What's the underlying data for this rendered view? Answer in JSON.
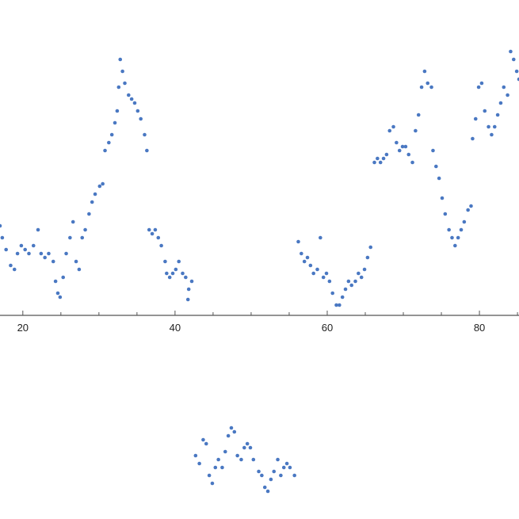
{
  "chart_data": {
    "type": "scatter",
    "title": "",
    "xlabel": "",
    "ylabel": "",
    "xlim": [
      17.0,
      85.2
    ],
    "ylim": [
      -2.57,
      3.98
    ],
    "grid": false,
    "x_major_ticks": [
      20,
      40,
      60,
      80
    ],
    "x_tick_labels": [
      "20",
      "40",
      "60",
      "80"
    ],
    "x_minor_step": 5,
    "marker_color": "#4a78c2",
    "points": [
      [
        17.0,
        1.13
      ],
      [
        17.3,
        0.98
      ],
      [
        17.8,
        0.83
      ],
      [
        18.4,
        0.63
      ],
      [
        18.9,
        0.58
      ],
      [
        19.3,
        0.78
      ],
      [
        19.8,
        0.88
      ],
      [
        20.3,
        0.83
      ],
      [
        20.8,
        0.78
      ],
      [
        21.4,
        0.88
      ],
      [
        22.0,
        1.08
      ],
      [
        22.4,
        0.78
      ],
      [
        22.9,
        0.73
      ],
      [
        23.4,
        0.78
      ],
      [
        24.0,
        0.68
      ],
      [
        24.3,
        0.43
      ],
      [
        24.6,
        0.28
      ],
      [
        24.9,
        0.23
      ],
      [
        25.3,
        0.48
      ],
      [
        25.7,
        0.78
      ],
      [
        26.2,
        0.98
      ],
      [
        26.6,
        1.18
      ],
      [
        27.0,
        0.68
      ],
      [
        27.4,
        0.58
      ],
      [
        27.8,
        0.98
      ],
      [
        28.2,
        1.08
      ],
      [
        28.7,
        1.28
      ],
      [
        29.1,
        1.43
      ],
      [
        29.5,
        1.53
      ],
      [
        30.1,
        1.63
      ],
      [
        30.5,
        1.66
      ],
      [
        30.8,
        2.08
      ],
      [
        31.3,
        2.18
      ],
      [
        31.7,
        2.28
      ],
      [
        32.1,
        2.43
      ],
      [
        32.4,
        2.58
      ],
      [
        32.6,
        2.88
      ],
      [
        32.8,
        3.23
      ],
      [
        33.1,
        3.08
      ],
      [
        33.4,
        2.93
      ],
      [
        33.9,
        2.78
      ],
      [
        34.3,
        2.73
      ],
      [
        34.7,
        2.68
      ],
      [
        35.1,
        2.58
      ],
      [
        35.5,
        2.48
      ],
      [
        36.0,
        2.28
      ],
      [
        36.3,
        2.08
      ],
      [
        36.6,
        1.08
      ],
      [
        37.0,
        1.03
      ],
      [
        37.4,
        1.08
      ],
      [
        37.8,
        0.98
      ],
      [
        38.2,
        0.88
      ],
      [
        38.7,
        0.68
      ],
      [
        38.9,
        0.53
      ],
      [
        39.3,
        0.48
      ],
      [
        39.7,
        0.53
      ],
      [
        40.1,
        0.58
      ],
      [
        40.5,
        0.68
      ],
      [
        41.0,
        0.53
      ],
      [
        41.4,
        0.48
      ],
      [
        41.8,
        0.33
      ],
      [
        42.2,
        0.43
      ],
      [
        41.7,
        0.2
      ],
      [
        42.7,
        -1.77
      ],
      [
        43.2,
        -1.87
      ],
      [
        43.7,
        -1.57
      ],
      [
        44.1,
        -1.62
      ],
      [
        44.5,
        -2.02
      ],
      [
        44.9,
        -2.12
      ],
      [
        45.3,
        -1.92
      ],
      [
        45.7,
        -1.82
      ],
      [
        46.2,
        -1.92
      ],
      [
        46.6,
        -1.72
      ],
      [
        47.0,
        -1.52
      ],
      [
        47.4,
        -1.42
      ],
      [
        47.8,
        -1.47
      ],
      [
        48.2,
        -1.77
      ],
      [
        48.7,
        -1.82
      ],
      [
        49.1,
        -1.67
      ],
      [
        49.5,
        -1.62
      ],
      [
        49.9,
        -1.67
      ],
      [
        50.3,
        -1.82
      ],
      [
        51.0,
        -1.97
      ],
      [
        51.4,
        -2.02
      ],
      [
        51.8,
        -2.17
      ],
      [
        52.2,
        -2.22
      ],
      [
        52.6,
        -2.07
      ],
      [
        53.0,
        -1.97
      ],
      [
        53.5,
        -1.82
      ],
      [
        53.9,
        -2.02
      ],
      [
        54.3,
        -1.92
      ],
      [
        54.7,
        -1.87
      ],
      [
        55.1,
        -1.92
      ],
      [
        55.7,
        -2.02
      ],
      [
        56.2,
        0.93
      ],
      [
        56.6,
        0.78
      ],
      [
        57.0,
        0.68
      ],
      [
        57.4,
        0.73
      ],
      [
        57.8,
        0.63
      ],
      [
        58.2,
        0.53
      ],
      [
        58.7,
        0.58
      ],
      [
        59.1,
        0.98
      ],
      [
        59.5,
        0.48
      ],
      [
        59.9,
        0.53
      ],
      [
        60.3,
        0.43
      ],
      [
        60.7,
        0.28
      ],
      [
        61.2,
        0.13
      ],
      [
        61.6,
        0.13
      ],
      [
        62.0,
        0.23
      ],
      [
        62.4,
        0.33
      ],
      [
        62.8,
        0.43
      ],
      [
        63.2,
        0.38
      ],
      [
        63.7,
        0.43
      ],
      [
        64.1,
        0.53
      ],
      [
        64.5,
        0.48
      ],
      [
        64.9,
        0.58
      ],
      [
        65.3,
        0.73
      ],
      [
        65.7,
        0.86
      ],
      [
        66.2,
        1.93
      ],
      [
        66.6,
        1.98
      ],
      [
        67.0,
        1.93
      ],
      [
        67.4,
        1.98
      ],
      [
        67.8,
        2.03
      ],
      [
        68.2,
        2.33
      ],
      [
        68.7,
        2.38
      ],
      [
        69.1,
        2.18
      ],
      [
        69.5,
        2.08
      ],
      [
        69.9,
        2.13
      ],
      [
        70.3,
        2.13
      ],
      [
        70.7,
        2.03
      ],
      [
        71.2,
        1.93
      ],
      [
        71.6,
        2.33
      ],
      [
        72.0,
        2.53
      ],
      [
        72.4,
        2.88
      ],
      [
        72.8,
        3.08
      ],
      [
        73.2,
        2.93
      ],
      [
        73.7,
        2.88
      ],
      [
        73.9,
        2.08
      ],
      [
        74.3,
        1.88
      ],
      [
        74.7,
        1.73
      ],
      [
        75.1,
        1.48
      ],
      [
        75.5,
        1.28
      ],
      [
        76.0,
        1.08
      ],
      [
        76.4,
        0.98
      ],
      [
        76.8,
        0.88
      ],
      [
        77.2,
        0.98
      ],
      [
        77.6,
        1.08
      ],
      [
        78.0,
        1.18
      ],
      [
        78.5,
        1.33
      ],
      [
        78.9,
        1.38
      ],
      [
        79.1,
        2.23
      ],
      [
        79.5,
        2.48
      ],
      [
        79.9,
        2.88
      ],
      [
        80.3,
        2.93
      ],
      [
        80.7,
        2.58
      ],
      [
        81.2,
        2.38
      ],
      [
        81.6,
        2.28
      ],
      [
        82.0,
        2.38
      ],
      [
        82.4,
        2.53
      ],
      [
        82.8,
        2.68
      ],
      [
        83.2,
        2.88
      ],
      [
        83.7,
        2.78
      ],
      [
        84.1,
        3.33
      ],
      [
        84.5,
        3.23
      ],
      [
        84.9,
        3.08
      ],
      [
        85.2,
        2.98
      ]
    ]
  }
}
